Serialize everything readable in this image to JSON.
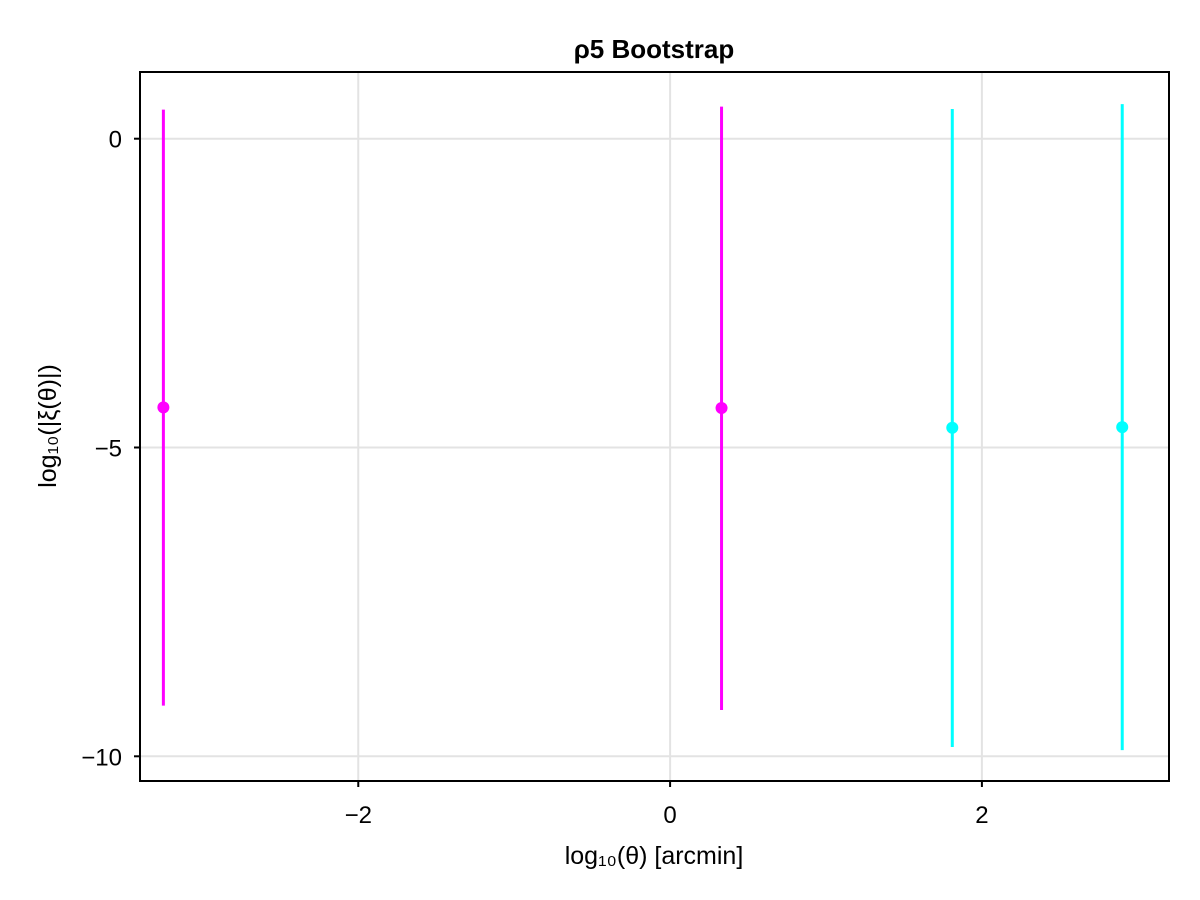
{
  "chart_data": {
    "type": "scatter",
    "title": "ρ5 Bootstrap",
    "xlabel": "log₁₀(θ) [arcmin]",
    "ylabel": "log₁₀(|ξ(θ)|)",
    "xlim": [
      -3.4,
      3.2
    ],
    "ylim": [
      -10.4,
      1.08
    ],
    "xticks": [
      -2,
      0,
      2
    ],
    "xtick_labels": [
      "−2",
      "0",
      "2"
    ],
    "yticks": [
      0,
      -5,
      -10
    ],
    "ytick_labels": [
      "0",
      "−5",
      "−10"
    ],
    "grid": true,
    "series": [
      {
        "color": "#ff00ff",
        "points": [
          {
            "x": -3.25,
            "y": -4.35,
            "ylow": -9.18,
            "yhigh": 0.47
          },
          {
            "x": 0.33,
            "y": -4.36,
            "ylow": -9.25,
            "yhigh": 0.52
          }
        ]
      },
      {
        "color": "#00ffff",
        "points": [
          {
            "x": 1.81,
            "y": -4.68,
            "ylow": -9.85,
            "yhigh": 0.48
          },
          {
            "x": 2.9,
            "y": -4.67,
            "ylow": -9.9,
            "yhigh": 0.56
          }
        ]
      }
    ]
  }
}
